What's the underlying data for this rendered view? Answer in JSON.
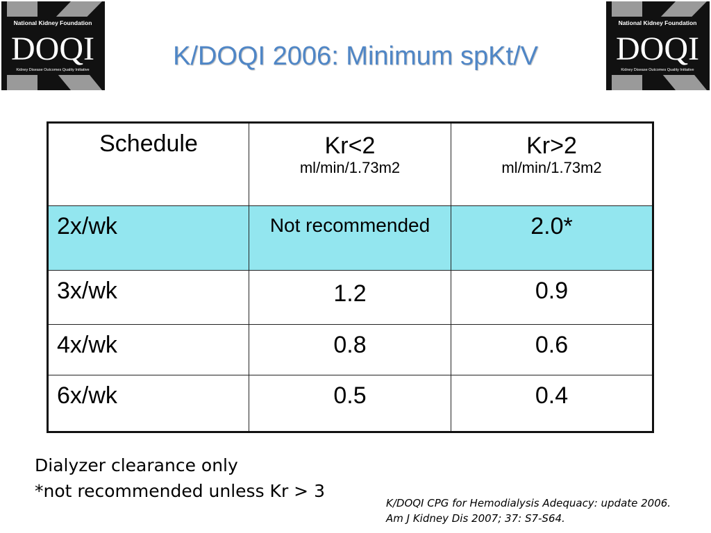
{
  "title": "K/DOQI 2006: Minimum spKt/V",
  "logo": {
    "org": "National Kidney Foundation",
    "mark": "DOQI",
    "tagline": "Kidney Disease Outcomes Quality Initiative",
    "colors": {
      "background": "#111111",
      "k_shape": "#9a9a9a",
      "text": "#ffffff"
    }
  },
  "table": {
    "header": {
      "schedule": "Schedule",
      "col1_main": "Kr<2",
      "col1_unit": "ml/min/1.73m2",
      "col2_main": "Kr>2",
      "col2_unit": "ml/min/1.73m2"
    },
    "rows": [
      {
        "schedule": "2x/wk",
        "kr_lt2": "Not recommended",
        "kr_gt2": "2.0*"
      },
      {
        "schedule": "3x/wk",
        "kr_lt2": "1.2",
        "kr_gt2": "0.9"
      },
      {
        "schedule": "4x/wk",
        "kr_lt2": "0.8",
        "kr_gt2": "0.6"
      },
      {
        "schedule": "6x/wk",
        "kr_lt2": "0.5",
        "kr_gt2": "0.4"
      }
    ],
    "highlight_color": "#93e6ef"
  },
  "footnotes": {
    "line1": "Dialyzer clearance only",
    "line2": "*not recommended unless Kr > 3"
  },
  "citation": {
    "line1": "K/DOQI CPG for Hemodialysis Adequacy: update 2006.",
    "line2": "Am J Kidney Dis 2007; 37: S7-S64."
  }
}
